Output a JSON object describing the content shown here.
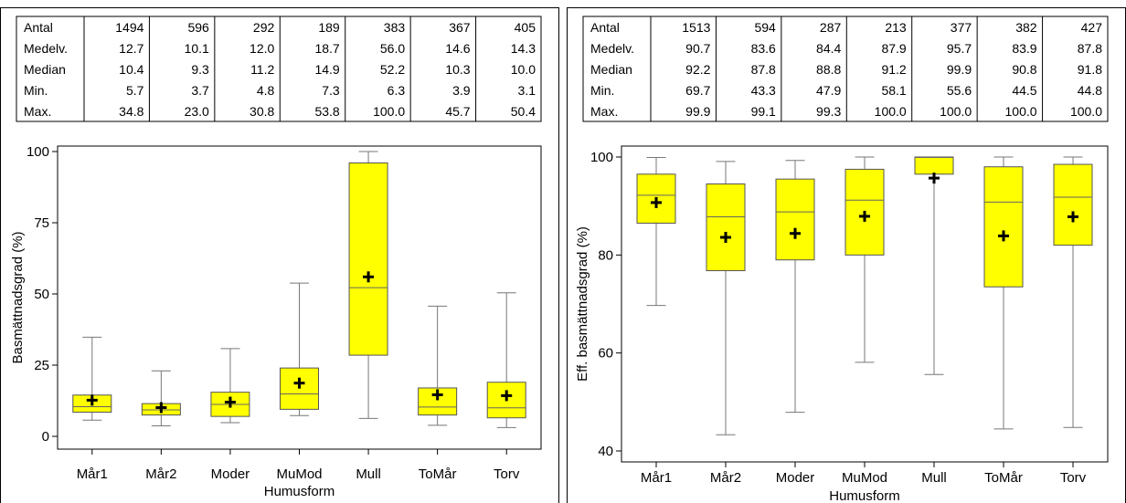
{
  "chart_data": [
    {
      "type": "box",
      "xlabel": "Humusform",
      "ylabel": "Basmättnadsgrad (%)",
      "ylim": [
        0,
        100
      ],
      "yticks": [
        0,
        25,
        50,
        75,
        100
      ],
      "categories": [
        "Mår1",
        "Mår2",
        "Moder",
        "MuMod",
        "Mull",
        "ToMår",
        "Torv"
      ],
      "box_color": "#ffff00",
      "stats_labels": [
        "Antal",
        "Medelv.",
        "Median",
        "Min.",
        "Max."
      ],
      "stats_display": [
        [
          "1494",
          "596",
          "292",
          "189",
          "383",
          "367",
          "405"
        ],
        [
          "12.7",
          "10.1",
          "12.0",
          "18.7",
          "56.0",
          "14.6",
          "14.3"
        ],
        [
          "10.4",
          "9.3",
          "11.2",
          "14.9",
          "52.2",
          "10.3",
          "10.0"
        ],
        [
          "5.7",
          "3.7",
          "4.8",
          "7.3",
          "6.3",
          "3.9",
          "3.1"
        ],
        [
          "34.8",
          "23.0",
          "30.8",
          "53.8",
          "100.0",
          "45.7",
          "50.4"
        ]
      ],
      "boxes": [
        {
          "min": 5.7,
          "q1": 8.5,
          "median": 10.4,
          "q3": 14.5,
          "max": 34.8,
          "mean": 12.7
        },
        {
          "min": 3.7,
          "q1": 7.5,
          "median": 9.3,
          "q3": 11.5,
          "max": 23.0,
          "mean": 10.1
        },
        {
          "min": 4.8,
          "q1": 7.0,
          "median": 11.2,
          "q3": 15.5,
          "max": 30.8,
          "mean": 12.0
        },
        {
          "min": 7.3,
          "q1": 9.5,
          "median": 14.9,
          "q3": 24.0,
          "max": 53.8,
          "mean": 18.7
        },
        {
          "min": 6.3,
          "q1": 28.5,
          "median": 52.2,
          "q3": 96.0,
          "max": 100.0,
          "mean": 56.0
        },
        {
          "min": 3.9,
          "q1": 7.5,
          "median": 10.3,
          "q3": 17.0,
          "max": 45.7,
          "mean": 14.6
        },
        {
          "min": 3.1,
          "q1": 6.5,
          "median": 10.0,
          "q3": 19.0,
          "max": 50.4,
          "mean": 14.3
        }
      ]
    },
    {
      "type": "box",
      "xlabel": "Humusform",
      "ylabel": "Eff. basmättnadsgrad (%)",
      "ylim": [
        40,
        100
      ],
      "yticks": [
        40,
        60,
        80,
        100
      ],
      "categories": [
        "Mår1",
        "Mår2",
        "Moder",
        "MuMod",
        "Mull",
        "ToMår",
        "Torv"
      ],
      "box_color": "#ffff00",
      "stats_labels": [
        "Antal",
        "Medelv.",
        "Median",
        "Min.",
        "Max."
      ],
      "stats_display": [
        [
          "1513",
          "594",
          "287",
          "213",
          "377",
          "382",
          "427"
        ],
        [
          "90.7",
          "83.6",
          "84.4",
          "87.9",
          "95.7",
          "83.9",
          "87.8"
        ],
        [
          "92.2",
          "87.8",
          "88.8",
          "91.2",
          "99.9",
          "90.8",
          "91.8"
        ],
        [
          "69.7",
          "43.3",
          "47.9",
          "58.1",
          "55.6",
          "44.5",
          "44.8"
        ],
        [
          "99.9",
          "99.1",
          "99.3",
          "100.0",
          "100.0",
          "100.0",
          "100.0"
        ]
      ],
      "boxes": [
        {
          "min": 69.7,
          "q1": 86.5,
          "median": 92.2,
          "q3": 96.5,
          "max": 99.9,
          "mean": 90.7
        },
        {
          "min": 43.3,
          "q1": 76.8,
          "median": 87.8,
          "q3": 94.5,
          "max": 99.1,
          "mean": 83.6
        },
        {
          "min": 47.9,
          "q1": 79.0,
          "median": 88.8,
          "q3": 95.5,
          "max": 99.3,
          "mean": 84.4
        },
        {
          "min": 58.1,
          "q1": 80.0,
          "median": 91.2,
          "q3": 97.5,
          "max": 100.0,
          "mean": 87.9
        },
        {
          "min": 55.6,
          "q1": 96.5,
          "median": 99.9,
          "q3": 100.0,
          "max": 100.0,
          "mean": 95.7
        },
        {
          "min": 44.5,
          "q1": 73.5,
          "median": 90.8,
          "q3": 98.0,
          "max": 100.0,
          "mean": 83.9
        },
        {
          "min": 44.8,
          "q1": 82.0,
          "median": 91.8,
          "q3": 98.5,
          "max": 100.0,
          "mean": 87.8
        }
      ]
    }
  ]
}
